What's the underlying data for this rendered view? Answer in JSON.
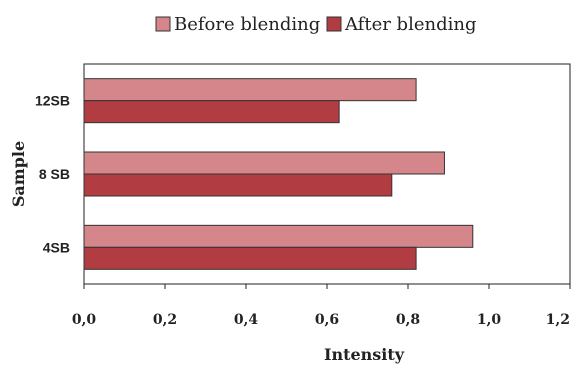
{
  "chart_data": {
    "type": "bar",
    "orientation": "horizontal",
    "categories": [
      "12SB",
      "8 SB",
      "4SB"
    ],
    "series": [
      {
        "name": "Before blending",
        "values": [
          0.82,
          0.89,
          0.96
        ],
        "color": "#d4868a"
      },
      {
        "name": "After blending",
        "values": [
          0.63,
          0.76,
          0.82
        ],
        "color": "#b13c41"
      }
    ],
    "xlabel": "Intensity",
    "ylabel": "Sample",
    "xlim": [
      0,
      1.2
    ],
    "xticks": [
      "0,0",
      "0,2",
      "0,4",
      "0,6",
      "0,8",
      "1,0",
      "1,2"
    ],
    "grid": false,
    "legend_position": "top"
  }
}
